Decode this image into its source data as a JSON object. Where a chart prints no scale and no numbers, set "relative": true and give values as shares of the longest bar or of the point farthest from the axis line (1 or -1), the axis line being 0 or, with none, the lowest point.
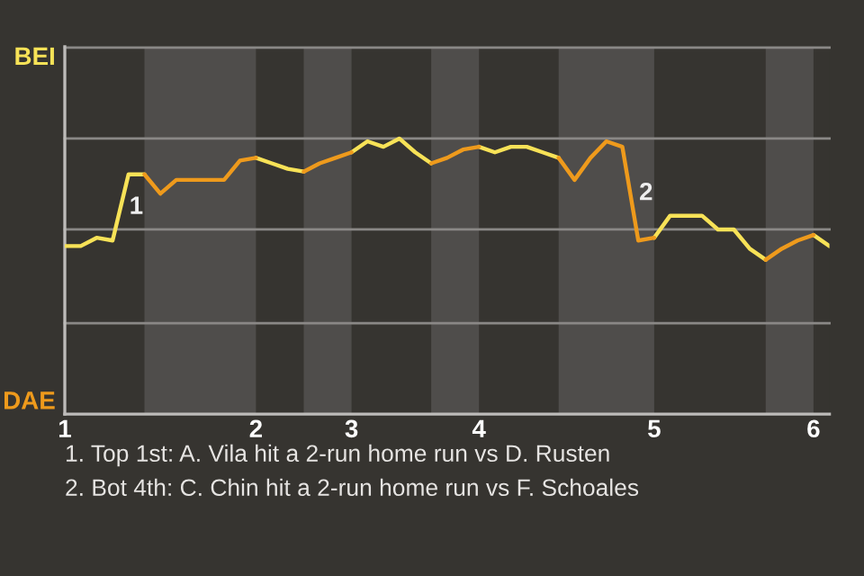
{
  "chart_data": {
    "type": "line",
    "relative": true,
    "categories": [
      "1",
      null,
      null,
      null,
      null,
      null,
      null,
      null,
      null,
      null,
      null,
      null,
      "2",
      null,
      null,
      null,
      null,
      null,
      "3",
      null,
      null,
      null,
      null,
      null,
      null,
      null,
      "4",
      null,
      null,
      null,
      null,
      null,
      null,
      null,
      null,
      null,
      null,
      "5",
      null,
      null,
      null,
      null,
      null,
      null,
      null,
      null,
      null,
      "6",
      null
    ],
    "series": [
      {
        "color": "#f7e257",
        "values": [
          0.61,
          0.61,
          0.64,
          0.63,
          0.87,
          0.87,
          null,
          null,
          null,
          null,
          null,
          null,
          0.93,
          0.91,
          0.89,
          0.88,
          null,
          null,
          0.95,
          0.99,
          0.97,
          1,
          0.95,
          0.91,
          null,
          null,
          0.97,
          0.95,
          0.97,
          0.97,
          0.95,
          0.93,
          null,
          null,
          null,
          null,
          null,
          0.64,
          0.72,
          0.72,
          0.72,
          0.67,
          0.67,
          0.6,
          0.56,
          null,
          null,
          0.65,
          0.61
        ]
      },
      {
        "color": "#ee9a1c",
        "values": [
          null,
          null,
          null,
          null,
          null,
          0.87,
          0.8,
          0.85,
          0.85,
          0.85,
          0.85,
          0.92,
          0.93,
          null,
          null,
          0.88,
          0.91,
          0.93,
          0.95,
          null,
          null,
          null,
          null,
          0.91,
          0.93,
          0.96,
          0.97,
          null,
          null,
          null,
          null,
          0.93,
          0.85,
          0.93,
          0.99,
          0.97,
          0.63,
          0.64,
          null,
          null,
          null,
          null,
          null,
          null,
          0.56,
          0.6,
          0.63,
          0.65,
          null
        ]
      }
    ],
    "ref_lines": [
      {
        "axis": "y",
        "value": 0.33,
        "color": "#8a8886"
      },
      {
        "axis": "y",
        "value": 0.67,
        "color": "#8a8886"
      },
      {
        "axis": "y",
        "value": 1,
        "color": "#8a8886"
      },
      {
        "axis": "y",
        "value": 1.33,
        "color": "#8a8886"
      }
    ],
    "marker": "none",
    "line_style": "solid",
    "legend": false,
    "annotations": [
      "BEI",
      "DAE",
      "1",
      "2",
      "1. Top 1st: A. Vila hit a 2-run home run vs D. Rusten",
      "2. Bot 4th: C. Chin hit a 2-run home run vs F. Schoales"
    ]
  }
}
